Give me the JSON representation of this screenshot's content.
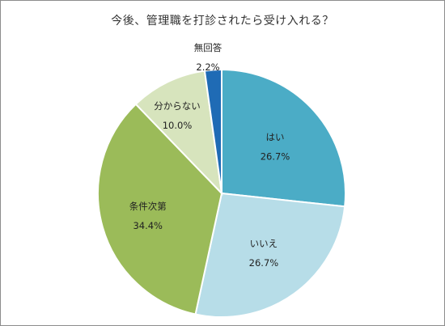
{
  "chart_data": {
    "type": "pie",
    "title": "今後、管理職を打診されたら受け入れる？",
    "slices": [
      {
        "label": "はい",
        "value": 26.7,
        "value_label": "26.7%",
        "color": "#4bacc6"
      },
      {
        "label": "いいえ",
        "value": 26.7,
        "value_label": "26.7%",
        "color": "#b7dde8"
      },
      {
        "label": "条件次第",
        "value": 34.4,
        "value_label": "34.4%",
        "color": "#9bbb59"
      },
      {
        "label": "分からない",
        "value": 10.0,
        "value_label": "10.0%",
        "color": "#d7e4bd"
      },
      {
        "label": "無回答",
        "value": 2.2,
        "value_label": "2.2%",
        "color": "#1f6bb5"
      }
    ],
    "start_angle_deg": 0,
    "direction": "clockwise",
    "legend": "none",
    "slice_border_color": "#ffffff"
  }
}
